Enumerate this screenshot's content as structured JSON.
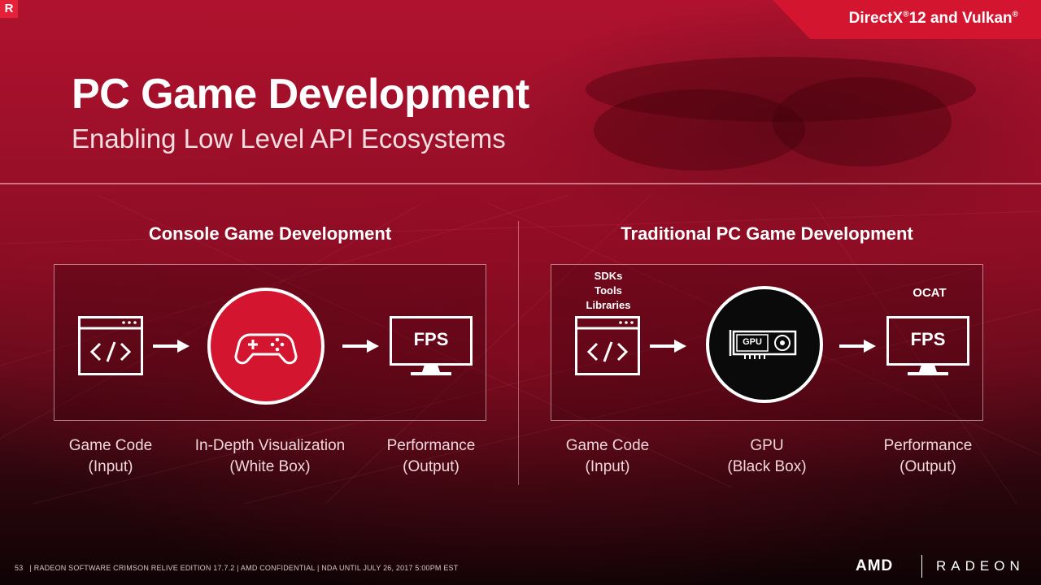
{
  "top_left_logo": "R",
  "banner": {
    "prefix": "DirectX",
    "reg1": "®",
    "middle": "12 and Vulkan",
    "reg2": "®"
  },
  "title": "PC Game Development",
  "subtitle": "Enabling Low Level API Ecosystems",
  "left_panel": {
    "heading": "Console Game Development",
    "steps": [
      {
        "line1": "Game Code",
        "line2": "(Input)"
      },
      {
        "line1": "In-Depth Visualization",
        "line2": "(White Box)"
      },
      {
        "line1": "Performance",
        "line2": "(Output)"
      }
    ],
    "monitor_text": "FPS",
    "icons": [
      "code-window-icon",
      "arrow-right-icon",
      "gamepad-icon",
      "arrow-right-icon",
      "monitor-fps-icon"
    ]
  },
  "right_panel": {
    "heading": "Traditional PC Game Development",
    "above_code": [
      "SDKs",
      "Tools",
      "Libraries"
    ],
    "above_monitor": "OCAT",
    "steps": [
      {
        "line1": "Game Code",
        "line2": "(Input)"
      },
      {
        "line1": "GPU",
        "line2": "(Black Box)"
      },
      {
        "line1": "Performance",
        "line2": "(Output)"
      }
    ],
    "monitor_text": "FPS",
    "gpu_text": "GPU",
    "icons": [
      "code-window-icon",
      "arrow-right-icon",
      "gpu-card-icon",
      "arrow-right-icon",
      "monitor-fps-icon"
    ]
  },
  "footer": {
    "page_number": "53",
    "text": "| RADEON SOFTWARE CRIMSON RELIVE EDITION 17.7.2 | AMD CONFIDENTIAL | NDA UNTIL JULY 26, 2017 5:00PM EST"
  },
  "brand": {
    "amd": "AMD",
    "radeon": "RADEON"
  },
  "colors": {
    "accent": "#d4152f",
    "background_top": "#b0122e",
    "background_bottom": "#0e0305",
    "gpu_circle": "#0a0a0a"
  }
}
